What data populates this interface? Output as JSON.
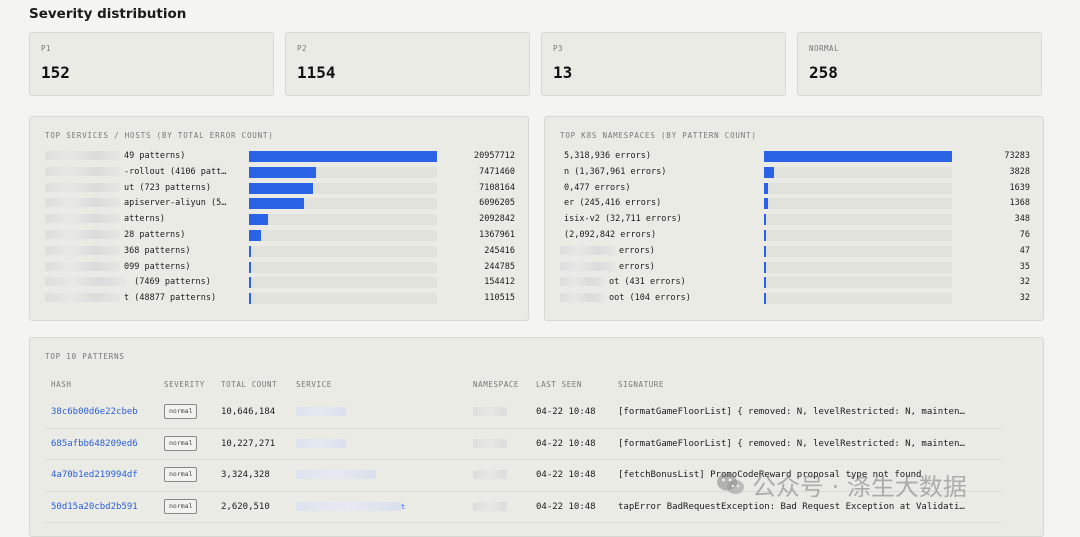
{
  "page_title": "Severity distribution",
  "severity": [
    {
      "label": "P1",
      "value": "152"
    },
    {
      "label": "P2",
      "value": "1154"
    },
    {
      "label": "P3",
      "value": "13"
    },
    {
      "label": "NORMAL",
      "value": "258"
    }
  ],
  "services": {
    "title": "TOP SERVICES / HOSTS (BY TOTAL ERROR COUNT)",
    "max": 20957712,
    "rows": [
      {
        "label": "49 patterns)",
        "value": 20957712,
        "display": "20957712"
      },
      {
        "label": "-rollout (4106 patt…",
        "value": 7471460,
        "display": "7471460"
      },
      {
        "label": "ut (723 patterns)",
        "value": 7108164,
        "display": "7108164"
      },
      {
        "label": "apiserver-aliyun (5…",
        "value": 6096205,
        "display": "6096205"
      },
      {
        "label": "atterns)",
        "value": 2092842,
        "display": "2092842"
      },
      {
        "label": "28 patterns)",
        "value": 1367961,
        "display": "1367961"
      },
      {
        "label": "368 patterns)",
        "value": 245416,
        "display": "245416"
      },
      {
        "label": "099 patterns)",
        "value": 244785,
        "display": "244785"
      },
      {
        "label": " (7469 patterns)",
        "value": 154412,
        "display": "154412"
      },
      {
        "label": "t (48877 patterns)",
        "value": 110515,
        "display": "110515"
      }
    ]
  },
  "namespaces": {
    "title": "TOP K8S NAMESPACES (BY PATTERN COUNT)",
    "max": 73283,
    "rows": [
      {
        "label": "5,318,936 errors)",
        "value": 73283,
        "display": "73283"
      },
      {
        "label": "n (1,367,961 errors)",
        "value": 3828,
        "display": "3828"
      },
      {
        "label": "0,477 errors)",
        "value": 1639,
        "display": "1639"
      },
      {
        "label": "er (245,416 errors)",
        "value": 1368,
        "display": "1368"
      },
      {
        "label": "isix-v2 (32,711 errors)",
        "value": 348,
        "display": "348"
      },
      {
        "label": "(2,092,842 errors)",
        "value": 76,
        "display": "76"
      },
      {
        "label": "errors)",
        "value": 47,
        "display": "47"
      },
      {
        "label": "errors)",
        "value": 35,
        "display": "35"
      },
      {
        "label": "ot (431 errors)",
        "value": 32,
        "display": "32"
      },
      {
        "label": "oot (104 errors)",
        "value": 32,
        "display": "32"
      }
    ]
  },
  "patterns": {
    "title": "TOP 10 PATTERNS",
    "columns": [
      "HASH",
      "SEVERITY",
      "TOTAL COUNT",
      "SERVICE",
      "NAMESPACE",
      "LAST SEEN",
      "SIGNATURE"
    ],
    "rows": [
      {
        "hash": "38c6b00d6e22cbeb",
        "severity": "normal",
        "count": "10,646,184",
        "service": "",
        "namespace": "",
        "last_seen": "04-22 10:48",
        "signature": "[formatGameFloorList] { removed: N, levelRestricted: N, mainten…"
      },
      {
        "hash": "685afbb648209ed6",
        "severity": "normal",
        "count": "10,227,271",
        "service": "",
        "namespace": "",
        "last_seen": "04-22 10:48",
        "signature": "[formatGameFloorList] { removed: N, levelRestricted: N, mainten…"
      },
      {
        "hash": "4a70b1ed219994df",
        "severity": "normal",
        "count": "3,324,328",
        "service": "",
        "namespace": "",
        "last_seen": "04-22 10:48",
        "signature": "[fetchBonusList] PromoCodeReward proposal type not found"
      },
      {
        "hash": "50d15a20cbd2b591",
        "severity": "normal",
        "count": "2,620,510",
        "service": "t",
        "namespace": "",
        "last_seen": "04-22 10:48",
        "signature": "tapError BadRequestException: Bad Request Exception at Validati…"
      }
    ]
  },
  "watermark": {
    "text": "公众号 · 涤生大数据",
    "icon": "wechat-icon"
  }
}
